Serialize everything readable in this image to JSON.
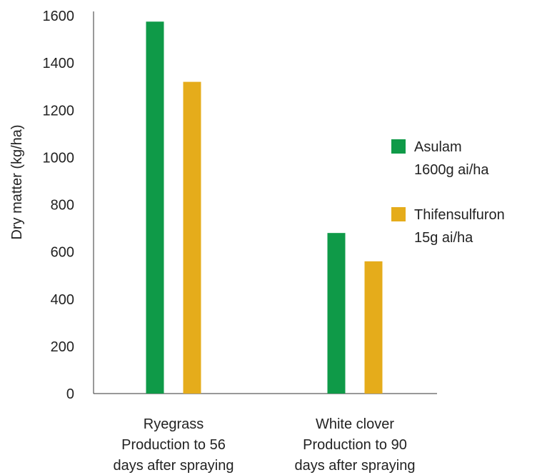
{
  "chart_data": {
    "type": "bar",
    "title": "",
    "ylabel": "Dry matter (kg/ha)",
    "xlabel": "",
    "ylim": [
      0,
      1600
    ],
    "yticks": [
      0,
      200,
      400,
      600,
      800,
      1000,
      1200,
      1400,
      1600
    ],
    "categories": [
      [
        "Ryegrass",
        "Production to 56",
        "days after spraying"
      ],
      [
        "White clover",
        "Production to 90",
        "days after spraying"
      ]
    ],
    "series": [
      {
        "name": [
          "Asulam",
          "1600g ai/ha"
        ],
        "color": "#0f9a48",
        "values": [
          1575,
          680
        ]
      },
      {
        "name": [
          "Thifensulfuron",
          "15g ai/ha"
        ],
        "color": "#e5ac1b",
        "values": [
          1320,
          560
        ]
      }
    ],
    "legend": "right",
    "grid": false
  }
}
